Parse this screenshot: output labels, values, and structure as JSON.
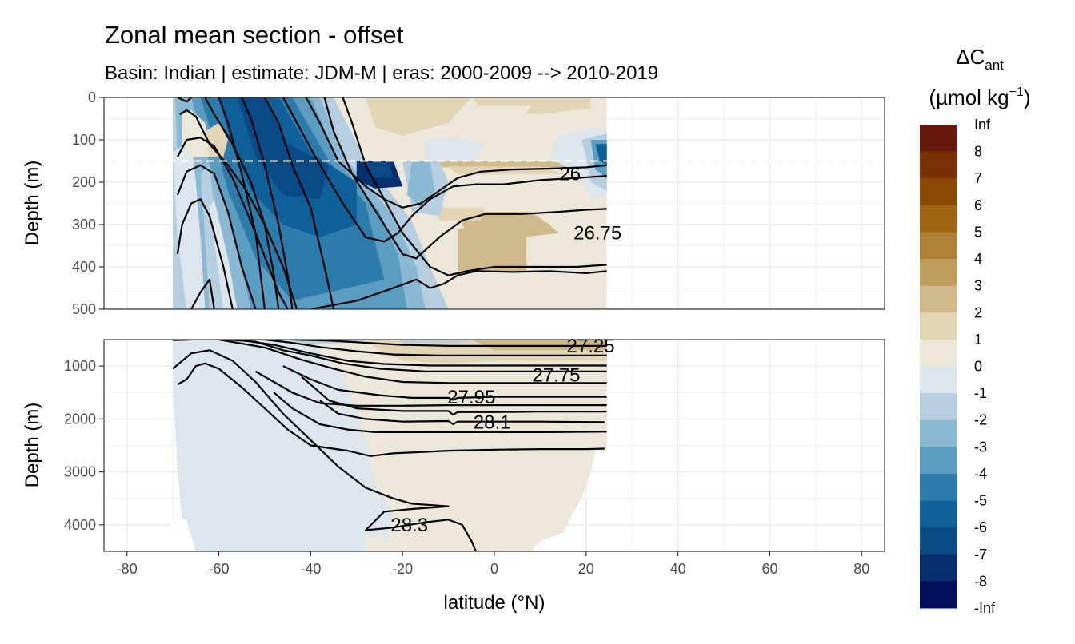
{
  "chart_data": {
    "type": "heatmap",
    "title": "Zonal mean section - offset",
    "subtitle": "Basin: Indian | estimate: JDM-M | eras: 2000-2009 --> 2010-2019",
    "xlabel": "latitude (°N)",
    "ylabel": "Depth (m)",
    "xlim": [
      -85,
      85
    ],
    "x_ticks": [
      -80,
      -60,
      -40,
      -20,
      0,
      20,
      40,
      60,
      80
    ],
    "data_lat_range": [
      -70,
      24.5
    ],
    "panels": [
      {
        "name": "upper",
        "ylim": [
          0,
          500
        ],
        "y_ticks": [
          0,
          100,
          200,
          300,
          400,
          500
        ]
      },
      {
        "name": "lower",
        "ylim": [
          500,
          4500
        ],
        "y_ticks": [
          1000,
          2000,
          3000,
          4000
        ]
      }
    ],
    "reference_depth_dashed": 150,
    "legend": {
      "title_main": "ΔC",
      "title_sub": "ant",
      "units_main": "(µmol kg",
      "units_sup": "−1",
      "units_close": ")",
      "labels": [
        "Inf",
        "8",
        "7",
        "6",
        "5",
        "4",
        "3",
        "2",
        "1",
        "0",
        "-1",
        "-2",
        "-3",
        "-4",
        "-5",
        "-6",
        "-7",
        "-8",
        "-Inf"
      ],
      "colors": [
        "#67180a",
        "#7a2f06",
        "#8c4a04",
        "#9d6510",
        "#ae8136",
        "#bf9d5d",
        "#d0b98a",
        "#e1d5b5",
        "#ede7da",
        "#dde6ec",
        "#b5cfe0",
        "#8bb8d2",
        "#5b9cc1",
        "#2d7bab",
        "#0f5f98",
        "#0a4a86",
        "#072f70",
        "#030f5c"
      ]
    },
    "contour_labels": [
      {
        "text": "26",
        "lat": 16.5,
        "depth": 180
      },
      {
        "text": "26.75",
        "lat": 22.5,
        "depth": 320
      },
      {
        "text": "27.25",
        "lat": 21,
        "depth": 620
      },
      {
        "text": "27.75",
        "lat": 13.5,
        "depth": 1170
      },
      {
        "text": "27.95",
        "lat": -5,
        "depth": 1590
      },
      {
        "text": "28.1",
        "lat": -0.5,
        "depth": 2060
      },
      {
        "text": "28.3",
        "lat": -18.5,
        "depth": 4000
      }
    ]
  }
}
